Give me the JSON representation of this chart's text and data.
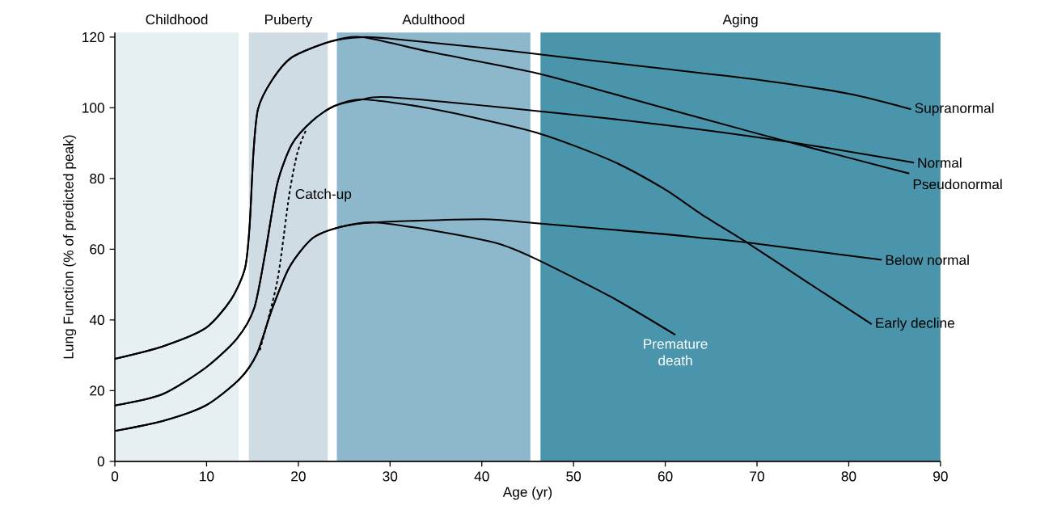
{
  "chart_data": {
    "type": "line",
    "xlabel": "Age (yr)",
    "ylabel": "Lung Function (% of predicted peak)",
    "xlim": [
      0,
      90
    ],
    "ylim": [
      0,
      121.3
    ],
    "xticks": [
      0,
      10,
      20,
      30,
      40,
      50,
      60,
      70,
      80,
      90
    ],
    "yticks": [
      0,
      20,
      40,
      60,
      80,
      100,
      120
    ],
    "line_style": "solid",
    "annotations": [
      {
        "text": "Premature death",
        "x": 61.1,
        "y": 35.8
      }
    ],
    "bands": [
      {
        "axis": "x",
        "from": 0,
        "to": 13.5,
        "label": "Childhood",
        "color": "#e6f0f3"
      },
      {
        "axis": "x",
        "from": 14.6,
        "to": 23.2,
        "label": "Puberty",
        "color": "#cfdce3"
      },
      {
        "axis": "x",
        "from": 24.2,
        "to": 45.3,
        "label": "Adulthood",
        "color": "#8db8cc"
      },
      {
        "axis": "x",
        "from": 46.4,
        "to": 90,
        "label": "Aging",
        "color": "#4a95ab"
      }
    ],
    "series": [
      {
        "name": "Supranormal",
        "color": "#000000",
        "x": [
          0,
          5.2,
          9.9,
          12.7,
          14.2,
          14.7,
          15.1,
          15.6,
          17.1,
          19.3,
          23.4,
          27,
          30,
          40,
          50,
          60,
          70,
          80,
          86.8
        ],
        "values": [
          29,
          32.5,
          37.7,
          45.9,
          54.8,
          67,
          87,
          99.6,
          107.7,
          114.3,
          118.7,
          120,
          119.6,
          117,
          114,
          111,
          108,
          104,
          99.6
        ]
      },
      {
        "name": "Pseudonormal",
        "color": "#000000",
        "x": [
          0,
          5.2,
          9.9,
          12.7,
          14.2,
          14.7,
          15.1,
          15.6,
          17.1,
          19.3,
          23.4,
          27,
          34.4,
          45.7,
          55,
          64,
          73.4,
          86.6
        ],
        "values": [
          29,
          32.5,
          37.7,
          45.9,
          54.8,
          67,
          87,
          99.6,
          107.7,
          114.3,
          118.7,
          120,
          115.8,
          110,
          103.5,
          97,
          90.4,
          81.4
        ]
      },
      {
        "name": "Normal",
        "color": "#000000",
        "x": [
          0,
          5.2,
          9.9,
          13.3,
          15.2,
          16.4,
          17.7,
          19.3,
          21.5,
          23.9,
          27,
          30,
          45.7,
          59.8,
          73.4,
          87.1
        ],
        "values": [
          15.8,
          19,
          26.5,
          34.7,
          43.4,
          59,
          78.5,
          89.7,
          96.3,
          100.5,
          102.4,
          103,
          99.2,
          95.2,
          90.4,
          84.5
        ]
      },
      {
        "name": "Early decline",
        "color": "#000000",
        "x": [
          0,
          5.2,
          9.9,
          13.3,
          15.2,
          16.4,
          17.7,
          19.3,
          21.5,
          23.9,
          27,
          34.4,
          45.7,
          54.1,
          59.8,
          64,
          68.9,
          75,
          82.5
        ],
        "values": [
          15.8,
          19,
          26.5,
          34.7,
          43.4,
          59,
          78.5,
          89.7,
          96.3,
          100.5,
          102.4,
          99.8,
          93.2,
          85.1,
          77.2,
          69.8,
          61.9,
          51.5,
          38.8
        ]
      },
      {
        "name": "Below normal",
        "color": "#000000",
        "x": [
          0,
          5.2,
          9.9,
          13.6,
          15.5,
          17.1,
          19,
          21.5,
          24.6,
          28.3,
          40.1,
          45.7,
          59.8,
          64,
          68.9,
          83.6
        ],
        "values": [
          8.6,
          11.4,
          15.8,
          23.3,
          30.5,
          42.8,
          54.8,
          63,
          66.3,
          67.6,
          68.5,
          67.4,
          64.3,
          63.2,
          61.9,
          57
        ]
      },
      {
        "color": "#000000",
        "x": [
          0,
          5.2,
          9.9,
          13.6,
          15.5,
          17.1,
          19,
          21.5,
          24.6,
          28.3,
          34.4,
          41.5,
          45.7,
          54.1,
          61.1
        ],
        "values": [
          8.6,
          11.4,
          15.8,
          23.3,
          30.5,
          42.8,
          54.8,
          63,
          66.3,
          67.6,
          65.4,
          61.8,
          57.5,
          46.5,
          35.8
        ]
      },
      {
        "name": "Catch-up",
        "color": "#000000",
        "line_style": "dashed",
        "x": [
          15.8,
          17.7,
          19,
          19.9,
          20.8
        ],
        "values": [
          31.4,
          50.9,
          75.3,
          87.3,
          93.5
        ]
      }
    ]
  }
}
